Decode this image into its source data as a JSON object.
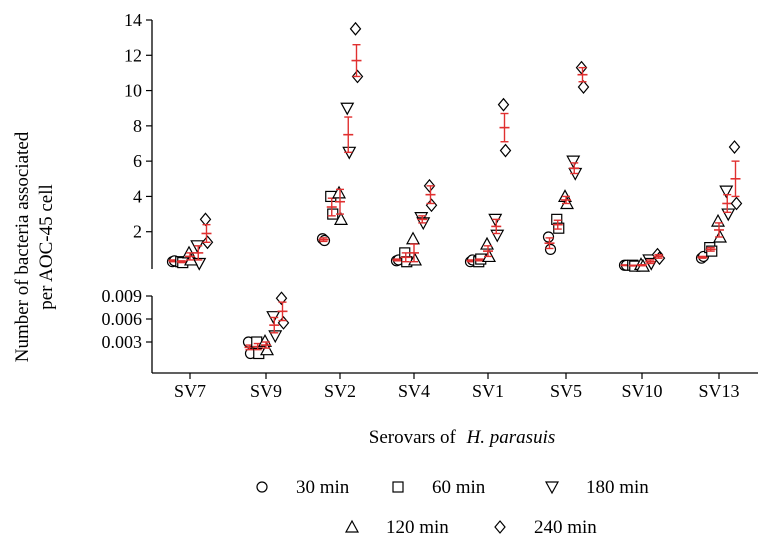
{
  "chart_data": {
    "type": "scatter",
    "title": "",
    "ylabel_line1": "Number of bacteria associated",
    "ylabel_line2": "per AOC-45 cell",
    "xlabel_prefix": "Serovars of",
    "xlabel_species": "H. parasuis",
    "categories": [
      "SV7",
      "SV9",
      "SV2",
      "SV4",
      "SV1",
      "SV5",
      "SV10",
      "SV13"
    ],
    "y_axis_upper": {
      "range": [
        0,
        14
      ],
      "ticks": [
        "2",
        "4",
        "6",
        "8",
        "10",
        "12",
        "14"
      ]
    },
    "y_axis_lower": {
      "range": [
        0,
        0.009
      ],
      "ticks": [
        "0.003",
        "0.006",
        "0.009"
      ]
    },
    "series": [
      {
        "name": "30 min",
        "marker": "circle",
        "points": [
          [
            0.3,
            0.35
          ],
          [
            0.25,
            0.3
          ],
          [
            1.6,
            1.5
          ],
          [
            0.35,
            0.4
          ],
          [
            0.3,
            0.4
          ],
          [
            1.7,
            1.0
          ],
          [
            0.1,
            0.1
          ],
          [
            0.5,
            0.6
          ]
        ],
        "lower_points": [
          null,
          [
            0.003,
            0.0015
          ],
          null,
          null,
          null,
          null,
          null,
          null
        ],
        "mean": [
          0.35,
          0.0023,
          1.55,
          0.4,
          0.35,
          1.35,
          0.1,
          0.55
        ],
        "err": [
          0.05,
          0.0003,
          0.1,
          0.05,
          0.05,
          0.3,
          0.02,
          0.05
        ]
      },
      {
        "name": "60 min",
        "marker": "square",
        "points": [
          [
            0.3,
            0.25
          ],
          [
            0.003,
            0.0015
          ],
          [
            4.0,
            3.0
          ],
          [
            0.8,
            0.3
          ],
          [
            0.3,
            0.45
          ],
          [
            2.7,
            2.2
          ],
          [
            0.1,
            0.05
          ],
          [
            1.1,
            0.9
          ]
        ],
        "lower_points": [
          null,
          [
            0.003,
            0.0015
          ],
          null,
          null,
          null,
          null,
          null,
          null
        ],
        "mean": [
          0.3,
          0.0024,
          3.4,
          0.55,
          0.4,
          2.4,
          0.08,
          1.0
        ],
        "err": [
          0.05,
          0.0004,
          0.5,
          0.25,
          0.05,
          0.25,
          0.02,
          0.1
        ]
      },
      {
        "name": "180 min",
        "marker": "triangle-down",
        "points": [
          [
            1.2,
            0.2
          ],
          [
            0.0063,
            0.0038
          ],
          [
            9.0,
            6.5
          ],
          [
            2.8,
            2.5
          ],
          [
            2.7,
            1.8
          ],
          [
            6.0,
            5.3
          ],
          [
            0.4,
            0.2
          ],
          [
            4.3,
            3.0
          ]
        ],
        "lower_points": [
          null,
          [
            0.0063,
            0.0038
          ],
          null,
          null,
          null,
          null,
          null,
          null
        ],
        "mean": [
          0.8,
          0.0052,
          7.5,
          2.7,
          2.3,
          5.6,
          0.3,
          3.6
        ],
        "err": [
          0.4,
          0.001,
          1.0,
          0.2,
          0.4,
          0.3,
          0.1,
          0.5
        ]
      },
      {
        "name": "120 min",
        "marker": "triangle-up",
        "points": [
          [
            0.8,
            0.4
          ],
          [
            0.0031,
            0.002
          ],
          [
            4.2,
            2.7
          ],
          [
            1.6,
            0.4
          ],
          [
            1.3,
            0.6
          ],
          [
            4.0,
            3.6
          ],
          [
            0.15,
            0.05
          ],
          [
            2.6,
            1.7
          ]
        ],
        "lower_points": [
          null,
          [
            0.0031,
            0.002
          ],
          null,
          null,
          null,
          null,
          null,
          null
        ],
        "mean": [
          0.6,
          0.0026,
          3.7,
          0.8,
          0.9,
          3.8,
          0.1,
          2.1
        ],
        "err": [
          0.2,
          0.0004,
          0.7,
          0.5,
          0.3,
          0.2,
          0.03,
          0.4
        ]
      },
      {
        "name": "240 min",
        "marker": "diamond",
        "points": [
          [
            2.7,
            1.4
          ],
          [
            0.0087,
            0.0055
          ],
          [
            13.5,
            10.8
          ],
          [
            4.6,
            3.5
          ],
          [
            9.2,
            6.6
          ],
          [
            11.3,
            10.2
          ],
          [
            0.7,
            0.5
          ],
          [
            6.8,
            3.6
          ]
        ],
        "lower_points": [
          null,
          [
            0.0087,
            0.0055
          ],
          null,
          null,
          null,
          null,
          null,
          null
        ],
        "mean": [
          1.9,
          0.007,
          11.7,
          4.1,
          7.9,
          10.9,
          0.6,
          5.0
        ],
        "err": [
          0.5,
          0.0012,
          0.9,
          0.5,
          0.8,
          0.4,
          0.1,
          1.0
        ]
      }
    ],
    "legend_placement": "bottom",
    "legend_rows": [
      [
        "30 min",
        "60 min",
        "180 min"
      ],
      [
        "120 min",
        "240 min"
      ]
    ],
    "error_bar_color": "#e03030",
    "marker_color": "#000000",
    "grid": false
  }
}
